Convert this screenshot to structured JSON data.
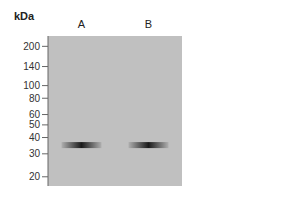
{
  "chart_data": {
    "type": "scatter",
    "y_label": "kDa",
    "categories": [
      "A",
      "B"
    ],
    "values": [
      35,
      35
    ],
    "color": "#1a1a1a",
    "log": "y",
    "ylim": [
      17,
      240
    ],
    "yticks": [
      20,
      30,
      40,
      50,
      60,
      80,
      100,
      140,
      200
    ],
    "grid": false
  }
}
